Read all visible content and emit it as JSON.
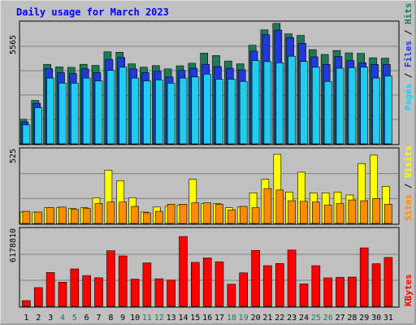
{
  "chart_data": {
    "type": "bar",
    "title": "Daily usage for March 2023",
    "categories": [
      "1",
      "2",
      "3",
      "4",
      "5",
      "6",
      "7",
      "8",
      "9",
      "10",
      "11",
      "12",
      "13",
      "14",
      "15",
      "16",
      "17",
      "18",
      "19",
      "20",
      "21",
      "22",
      "23",
      "24",
      "25",
      "26",
      "27",
      "28",
      "29",
      "30",
      "31"
    ],
    "weekend_days": [
      "4",
      "5",
      "11",
      "12",
      "18",
      "19",
      "25",
      "26"
    ],
    "panels": [
      {
        "name": "hits-files-pages",
        "ymax": 5565,
        "tick_label": "5565",
        "series": [
          {
            "name": "Hits",
            "color": "#1e7a55",
            "values": [
              1120,
              1980,
              3630,
              3510,
              3490,
              3630,
              3580,
              4200,
              4180,
              3650,
              3500,
              3570,
              3420,
              3560,
              3680,
              4140,
              4030,
              3780,
              3650,
              4500,
              5200,
              5500,
              5020,
              4950,
              4300,
              4080,
              4260,
              4150,
              4130,
              3930,
              3910
            ]
          },
          {
            "name": "Files",
            "color": "#2039d8",
            "values": [
              1000,
              1850,
              3430,
              3250,
              3210,
              3420,
              3250,
              3850,
              3940,
              3420,
              3250,
              3310,
              3050,
              3350,
              3450,
              3630,
              3520,
              3450,
              3380,
              4230,
              4980,
              5190,
              4850,
              4590,
              3970,
              3620,
              3980,
              3800,
              3700,
              3620,
              3620
            ]
          },
          {
            "name": "Pages",
            "color": "#21ccf0",
            "values": [
              860,
              1650,
              3000,
              2770,
              2770,
              3000,
              2870,
              3350,
              3500,
              3000,
              2870,
              2920,
              2770,
              3000,
              3050,
              3180,
              2950,
              2950,
              2850,
              3800,
              3750,
              3700,
              4000,
              3760,
              3500,
              2850,
              3450,
              3480,
              3500,
              3000,
              3100
            ]
          }
        ]
      },
      {
        "name": "visits-sites",
        "ymax": 525,
        "tick_label": "525",
        "series": [
          {
            "name": "Visits",
            "color": "#ffff00",
            "values": [
              80,
              80,
              110,
              110,
              105,
              110,
              180,
              375,
              300,
              180,
              80,
              115,
              120,
              130,
              310,
              140,
              140,
              110,
              115,
              215,
              310,
              485,
              220,
              360,
              215,
              215,
              220,
              200,
              420,
              480,
              260
            ]
          },
          {
            "name": "Sites",
            "color": "#ff8c00",
            "values": [
              85,
              80,
              110,
              115,
              100,
              105,
              140,
              150,
              150,
              120,
              75,
              85,
              135,
              135,
              145,
              145,
              135,
              95,
              120,
              110,
              245,
              235,
              160,
              155,
              150,
              130,
              140,
              165,
              160,
              175,
              135
            ]
          }
        ]
      },
      {
        "name": "kbytes",
        "ymax": 6178810,
        "tick_label": "6178810",
        "series": [
          {
            "name": "KBytes",
            "color": "#ff0000",
            "values": [
              450000,
              1480000,
              2680000,
              1910000,
              2960000,
              2430000,
              2260000,
              4400000,
              3990000,
              2150000,
              3440000,
              2180000,
              2080000,
              5530000,
              3480000,
              3830000,
              3530000,
              1750000,
              2650000,
              4430000,
              3220000,
              3390000,
              4460000,
              1770000,
              3220000,
              2250000,
              2290000,
              2320000,
              4630000,
              3370000,
              3870000
            ]
          }
        ]
      }
    ]
  },
  "colors": {
    "title": "#0000ff",
    "background": "#c0c0c0",
    "panel_fill": "#c0c0c0",
    "grid": "#808080",
    "weekday_label": "#000000",
    "weekend_label": "#1e7a55"
  }
}
